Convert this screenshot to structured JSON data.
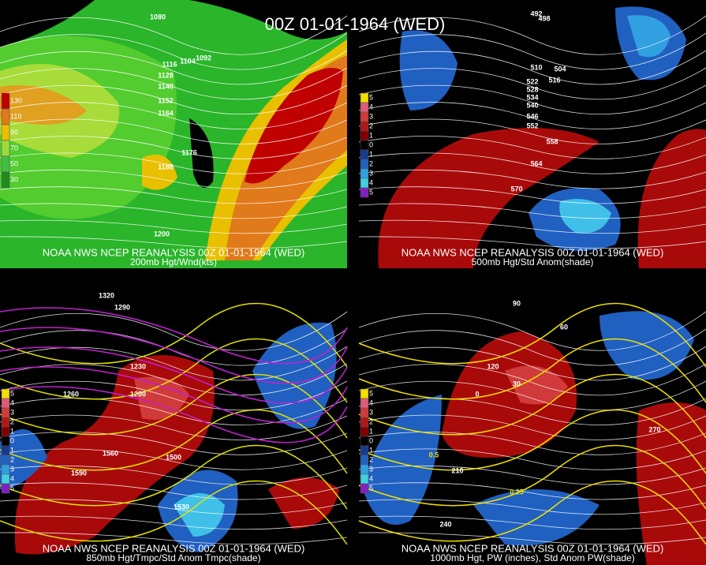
{
  "title": "00Z 01-01-1964 (WED)",
  "panels": [
    {
      "source": "NOAA NWS NCEP REANALYSIS 00Z 01-01-1964 (WED)",
      "caption": "200mb Hgt/Wnd(kts)",
      "legend": [
        130,
        110,
        90,
        70,
        50,
        30
      ],
      "contours": [
        1080,
        1092,
        1104,
        1116,
        1128,
        1140,
        1152,
        1164,
        1176,
        1188,
        1200
      ]
    },
    {
      "source": "NOAA NWS NCEP REANALYSIS 00Z 01-01-1964 (WED)",
      "caption": "500mb Hgt/Std Anom(shade)",
      "legend": [
        5,
        4,
        3,
        2,
        1,
        0,
        1,
        2,
        3,
        4,
        5
      ],
      "contours": [
        492,
        498,
        504,
        510,
        516,
        522,
        528,
        534,
        540,
        546,
        552,
        558,
        564,
        570
      ]
    },
    {
      "source": "NOAA NWS NCEP REANALYSIS 00Z 01-01-1964 (WED)",
      "caption": "850mb Hgt/Tmpc/Std Anom Tmpc(shade)",
      "legend": [
        5,
        4,
        3,
        2,
        1,
        0,
        1,
        2,
        3,
        4,
        5
      ],
      "contours": [
        1200,
        1230,
        1260,
        1290,
        1320,
        1500,
        1530,
        1560,
        1590
      ]
    },
    {
      "source": "NOAA NWS NCEP REANALYSIS 00Z 01-01-1964 (WED)",
      "caption": "1000mb Hgt, PW (inches), Std Anom PW(shade)",
      "legend": [
        5,
        4,
        3,
        2,
        1,
        0,
        1,
        2,
        3,
        4,
        5
      ],
      "contours": [
        0,
        30,
        60,
        90,
        120,
        210,
        240,
        270,
        0.25,
        0.5
      ]
    }
  ]
}
